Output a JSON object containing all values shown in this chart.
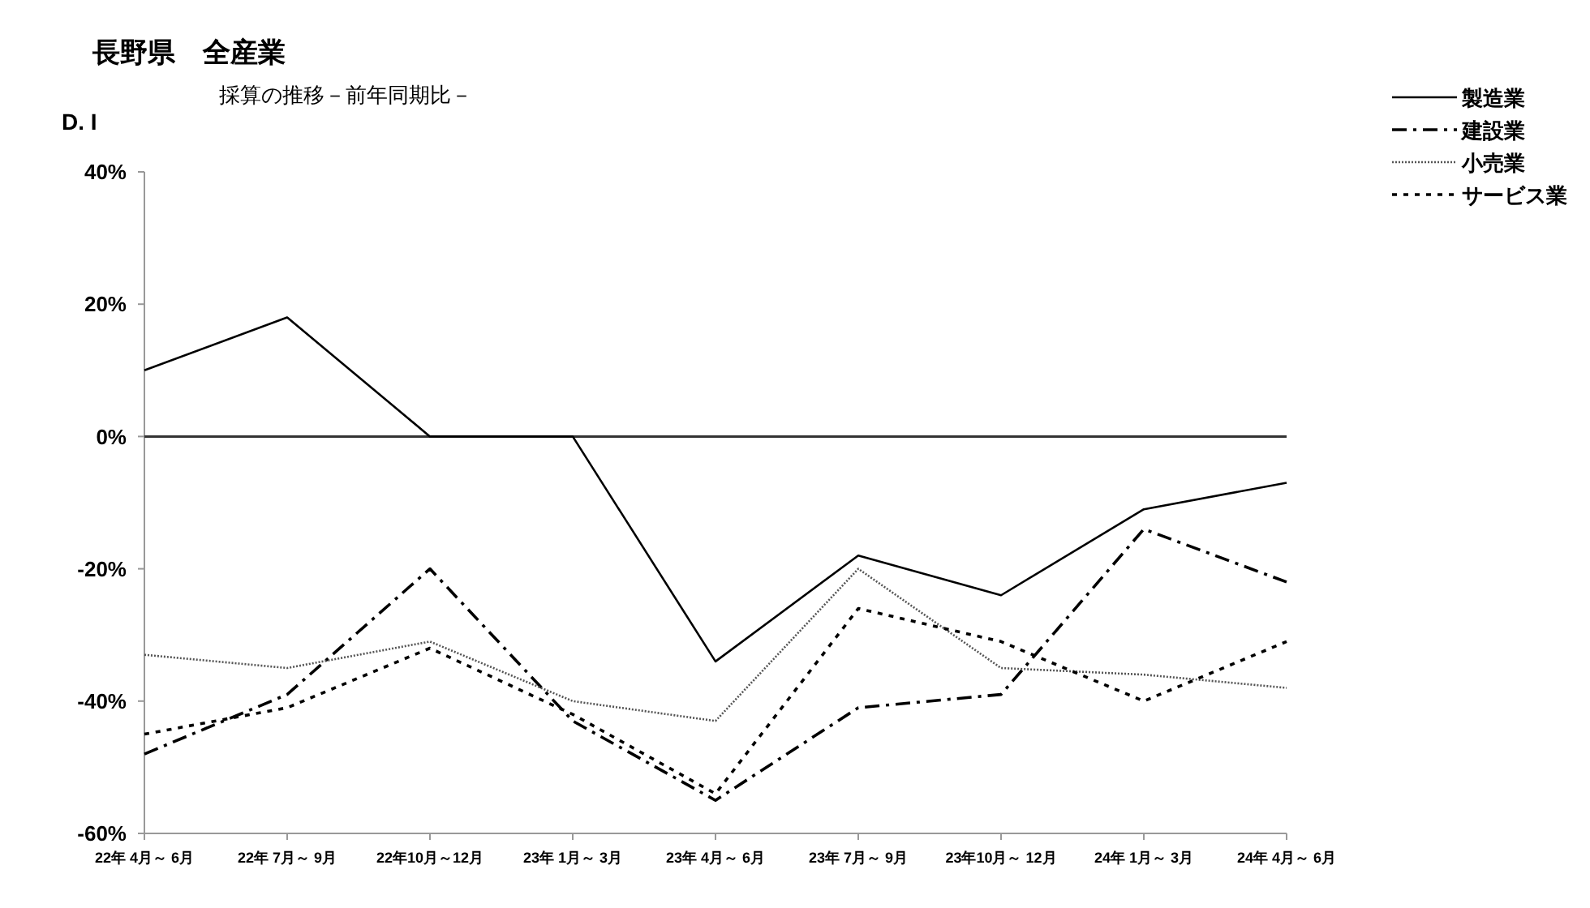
{
  "chart_data": {
    "type": "line",
    "title": "長野県　全産業",
    "subtitle": "採算の推移－前年同期比－",
    "ylabel": "D. I",
    "categories": [
      "22年 4月～ 6月",
      "22年 7月～ 9月",
      "22年10月～12月",
      "23年 1月～ 3月",
      "23年 4月～ 6月",
      "23年 7月～ 9月",
      "23年10月～ 12月",
      "24年 1月～ 3月",
      "24年 4月～ 6月"
    ],
    "series": [
      {
        "name": "製造業",
        "color": "#000000",
        "line_style": "solid",
        "values": [
          10,
          18,
          0,
          0,
          -34,
          -18,
          -24,
          -11,
          -7
        ]
      },
      {
        "name": "建設業",
        "color": "#000000",
        "line_style": "dashdot",
        "values": [
          -48,
          -39,
          -20,
          -43,
          -55,
          -41,
          -39,
          -14,
          -22
        ]
      },
      {
        "name": "小売業",
        "color": "#555555",
        "line_style": "dotted",
        "values": [
          -33,
          -35,
          -31,
          -40,
          -43,
          -20,
          -35,
          -36,
          -38
        ]
      },
      {
        "name": "サービス業",
        "color": "#000000",
        "line_style": "dashed",
        "values": [
          -45,
          -41,
          -32,
          -42,
          -54,
          -26,
          -31,
          -40,
          -31
        ]
      }
    ],
    "ylim": [
      -60,
      40
    ],
    "yticks": [
      {
        "value": -60,
        "label": "-60%"
      },
      {
        "value": -40,
        "label": "-40%"
      },
      {
        "value": -20,
        "label": "-20%"
      },
      {
        "value": 0,
        "label": "0%"
      },
      {
        "value": 20,
        "label": "20%"
      },
      {
        "value": 40,
        "label": "40%"
      }
    ],
    "ref_lines": [
      {
        "axis": "y",
        "value": 0,
        "color": "#333333"
      }
    ],
    "legend": "top right"
  }
}
